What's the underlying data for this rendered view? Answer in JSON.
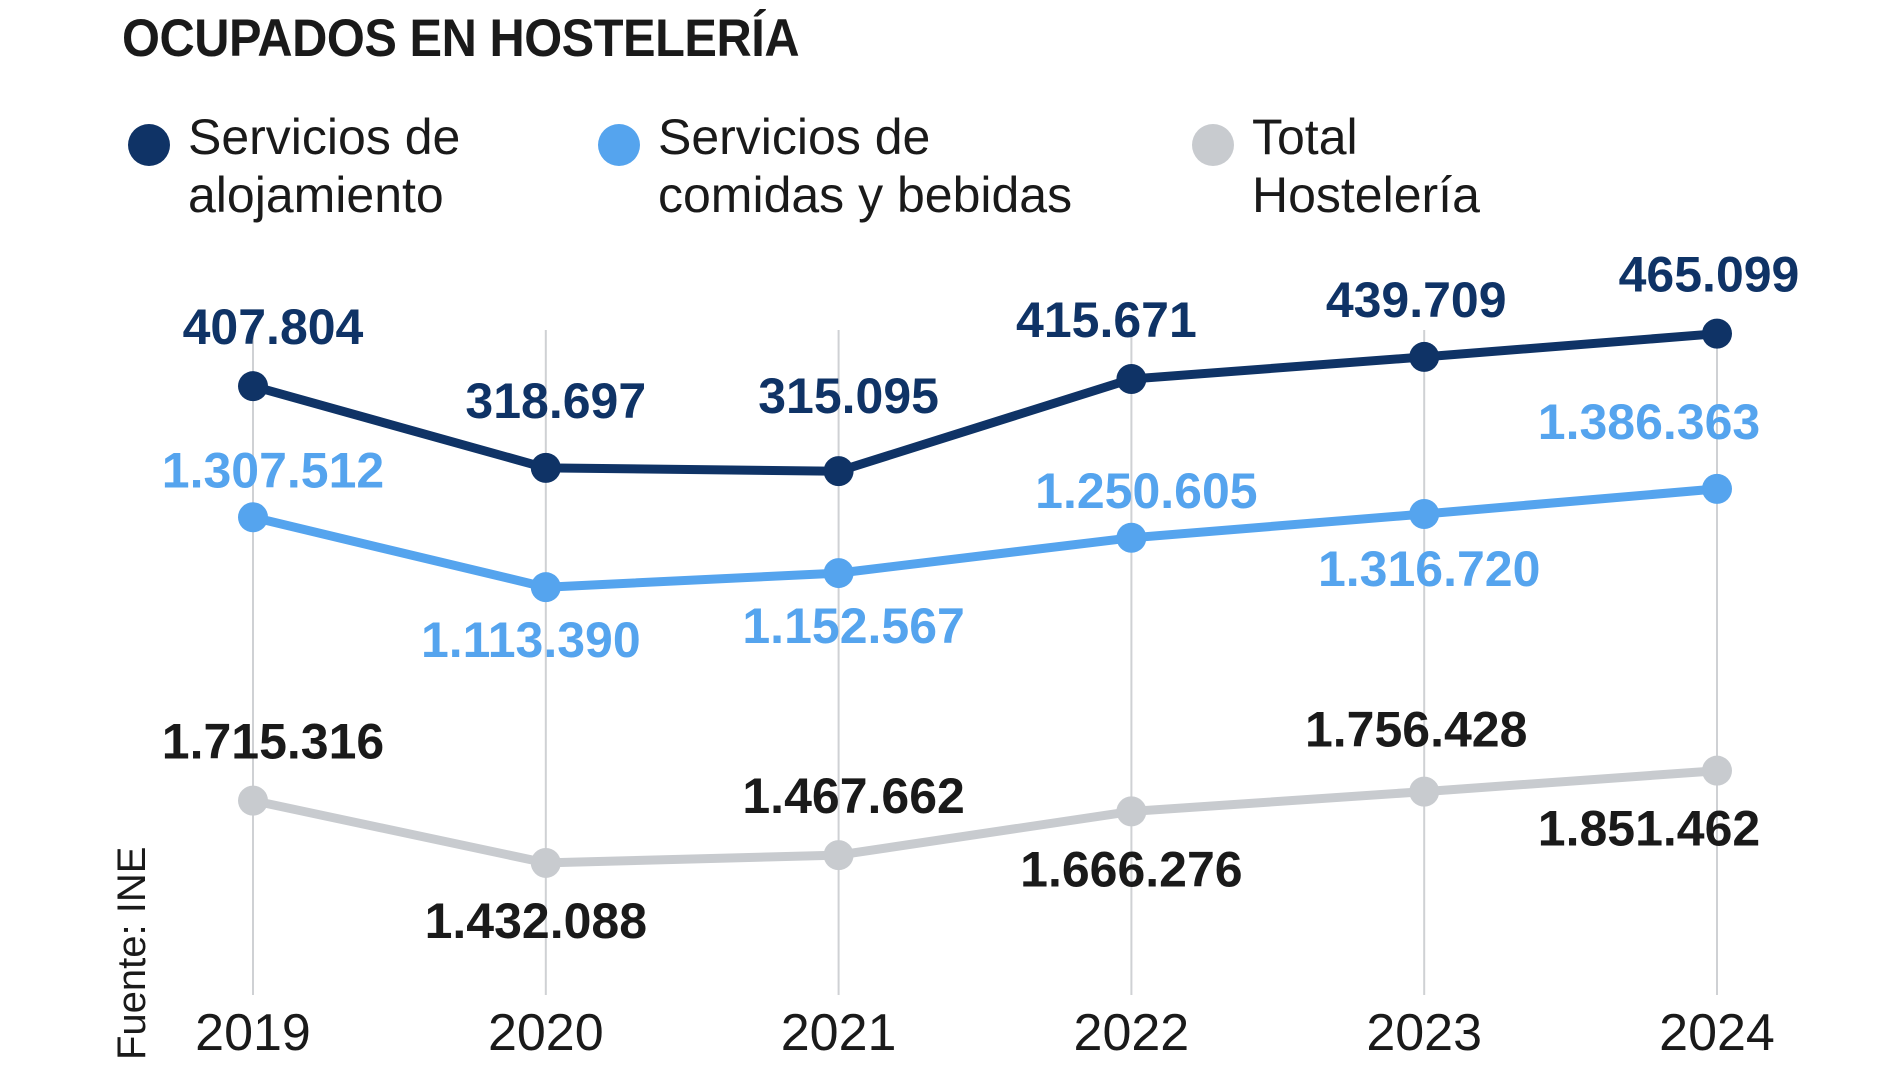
{
  "title": "OCUPADOS EN HOSTELERÍA",
  "source": "Fuente: INE",
  "legend": [
    {
      "label": "Servicios de\nalojamiento",
      "color": "#0f3366"
    },
    {
      "label": "Servicios de\ncomidas y bebidas",
      "color": "#55a4ee"
    },
    {
      "label": "Total\nHostelería",
      "color": "#c8cbcf"
    }
  ],
  "chart_data": {
    "type": "line",
    "title": "OCUPADOS EN HOSTELERÍA",
    "xlabel": "",
    "ylabel": "",
    "categories": [
      "2019",
      "2020",
      "2021",
      "2022",
      "2023",
      "2024"
    ],
    "grid": "vertical lines at each year",
    "legend_position": "top",
    "series": [
      {
        "name": "Servicios de alojamiento",
        "color": "#0f3366",
        "label_color": "#0f3366",
        "values": [
          407804,
          318697,
          315095,
          415671,
          439709,
          465099
        ],
        "labels": [
          "407.804",
          "318.697",
          "315.095",
          "415.671",
          "439.709",
          "465.099"
        ]
      },
      {
        "name": "Servicios de comidas y bebidas",
        "color": "#55a4ee",
        "label_color": "#55a4ee",
        "values": [
          1307512,
          1113390,
          1152567,
          1250605,
          1316720,
          1386363
        ],
        "labels": [
          "1.307.512",
          "1.113.390",
          "1.152.567",
          "1.250.605",
          "1.316.720",
          "1.386.363"
        ]
      },
      {
        "name": "Total Hostelería",
        "color": "#c8cbcf",
        "label_color": "#1a1a1a",
        "values": [
          1715316,
          1432088,
          1467662,
          1666276,
          1756428,
          1851462
        ],
        "labels": [
          "1.715.316",
          "1.432.088",
          "1.467.662",
          "1.666.276",
          "1.756.428",
          "1.851.462"
        ]
      }
    ]
  }
}
